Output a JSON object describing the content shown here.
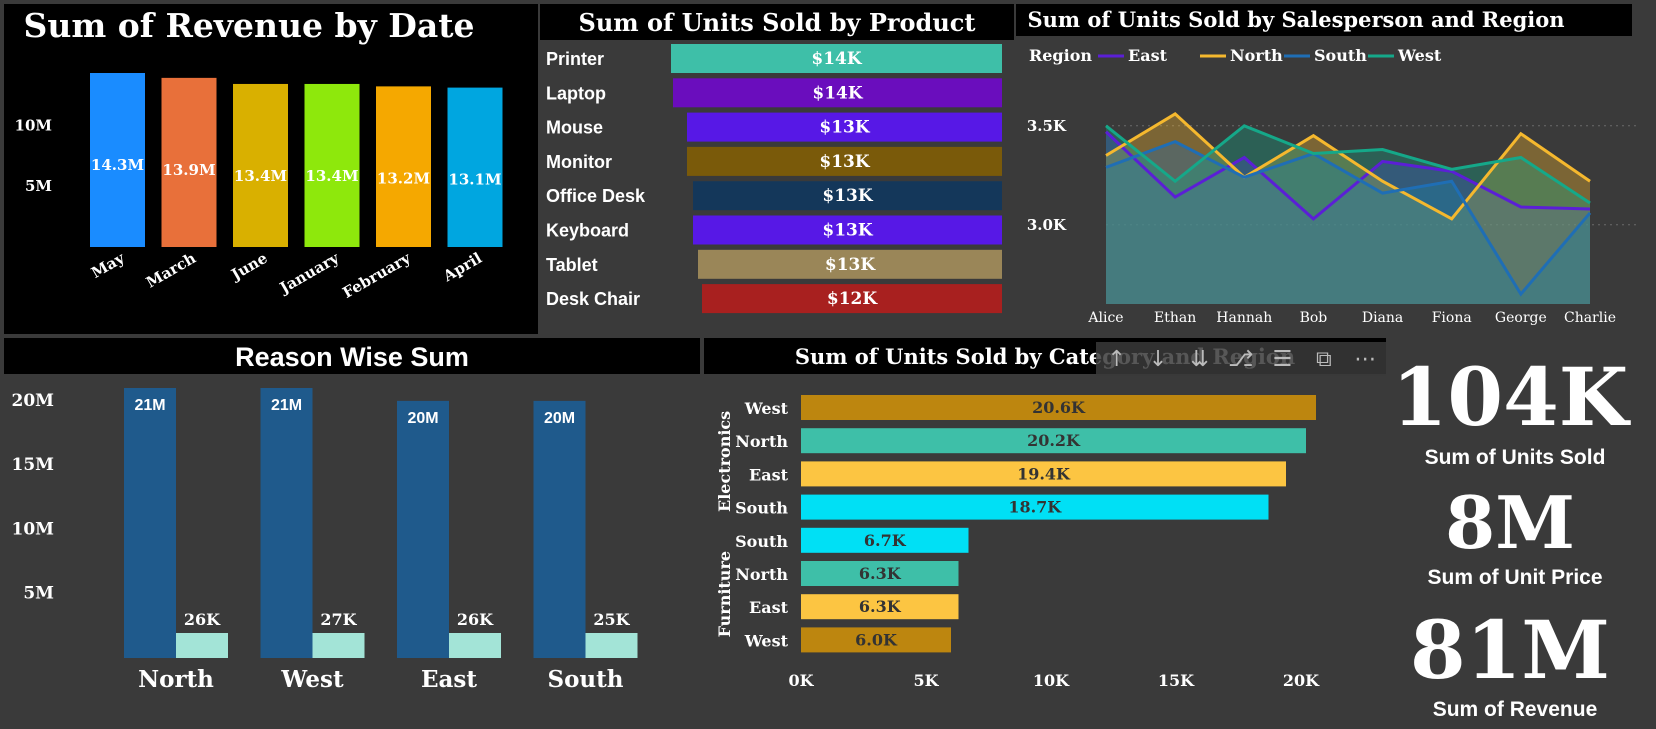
{
  "charts": {
    "revenue_by_date": {
      "title": "Sum of Revenue by Date",
      "y_ticks": [
        "10M",
        "5M"
      ]
    },
    "units_by_product": {
      "title": "Sum of Units Sold by Product"
    },
    "units_by_salesperson_region": {
      "title": "Sum of Units Sold by Salesperson and Region",
      "legend_title": "Region",
      "y_ticks": [
        "3.5K",
        "3.0K"
      ]
    },
    "reason_wise_sum": {
      "title": "Reason Wise Sum",
      "y_ticks": [
        "20M",
        "15M",
        "10M",
        "5M"
      ]
    },
    "units_by_category_region": {
      "title": "Sum of Units Sold by Category and Region",
      "x_ticks": [
        "0K",
        "5K",
        "10K",
        "15K",
        "20K"
      ]
    }
  },
  "kpis": [
    {
      "value": "104K",
      "label": "Sum of Units Sold"
    },
    {
      "value": "8M",
      "label": "Sum of Unit Price"
    },
    {
      "value": "81M",
      "label": "Sum of Revenue"
    }
  ],
  "toolbar_icons": [
    "arrow-up-icon",
    "arrow-down-icon",
    "double-arrow-down-icon",
    "hierarchy-icon",
    "filter-icon",
    "focus-mode-icon",
    "more-options-icon"
  ],
  "colors": {
    "background": "#3a3a3a",
    "panel_black": "#000000",
    "east": "#5b1fd6",
    "north": "#f5b82e",
    "south": "#1f6eb5",
    "west": "#15a889"
  },
  "chart_data": [
    {
      "type": "bar",
      "title": "Sum of Revenue by Date",
      "categories": [
        "May",
        "March",
        "June",
        "January",
        "February",
        "April"
      ],
      "values": [
        14.3,
        13.9,
        13.4,
        13.4,
        13.2,
        13.1
      ],
      "data_labels": [
        "14.3M",
        "13.9M",
        "13.4M",
        "13.4M",
        "13.2M",
        "13.1M"
      ],
      "colors": [
        "#1a8cff",
        "#e8703a",
        "#d9b000",
        "#8ee80c",
        "#f5a800",
        "#00a6e0"
      ],
      "ylim": [
        0,
        15
      ],
      "y_ticks": [
        "10M",
        "5M"
      ]
    },
    {
      "type": "bar",
      "orientation": "horizontal",
      "title": "Sum of Units Sold by Product",
      "categories": [
        "Printer",
        "Laptop",
        "Mouse",
        "Monitor",
        "Office Desk",
        "Keyboard",
        "Tablet",
        "Desk Chair"
      ],
      "values": [
        14,
        14,
        13,
        13,
        13,
        13,
        13,
        12
      ],
      "data_labels": [
        "$14K",
        "$14K",
        "$13K",
        "$13K",
        "$13K",
        "$13K",
        "$13K",
        "$12K"
      ],
      "colors": [
        "#3ebfa8",
        "#6a0dbd",
        "#5718e6",
        "#7a5a0a",
        "#14375a",
        "#5718e6",
        "#9a8658",
        "#a8201f"
      ]
    },
    {
      "type": "area",
      "title": "Sum of Units Sold by Salesperson and Region",
      "x": [
        "Alice",
        "Ethan",
        "Hannah",
        "Bob",
        "Diana",
        "Fiona",
        "George",
        "Charlie"
      ],
      "series": [
        {
          "name": "East",
          "values": [
            3.47,
            3.14,
            3.34,
            3.03,
            3.32,
            3.27,
            3.09,
            3.08
          ]
        },
        {
          "name": "North",
          "values": [
            3.35,
            3.56,
            3.24,
            3.45,
            3.22,
            3.03,
            3.46,
            3.22
          ]
        },
        {
          "name": "South",
          "values": [
            3.29,
            3.42,
            3.24,
            3.36,
            3.16,
            3.22,
            2.65,
            3.06
          ]
        },
        {
          "name": "West",
          "values": [
            3.5,
            3.22,
            3.5,
            3.36,
            3.38,
            3.28,
            3.34,
            3.11
          ]
        }
      ],
      "legend_title": "Region",
      "ylim": [
        2.6,
        3.6
      ],
      "y_ticks": [
        "3.5K",
        "3.0K"
      ]
    },
    {
      "type": "bar",
      "title": "Reason Wise Sum",
      "categories": [
        "North",
        "West",
        "East",
        "South"
      ],
      "series": [
        {
          "values": [
            21,
            21,
            20,
            20
          ],
          "data_labels": [
            "21M",
            "21M",
            "20M",
            "20M"
          ],
          "color": "#1f5a8c"
        },
        {
          "values": [
            0.026,
            0.027,
            0.026,
            0.025
          ],
          "data_labels": [
            "26K",
            "27K",
            "26K",
            "25K"
          ],
          "color": "#a3e4d7"
        }
      ],
      "ylim": [
        0,
        21
      ],
      "y_ticks": [
        "20M",
        "15M",
        "10M",
        "5M"
      ]
    },
    {
      "type": "bar",
      "orientation": "horizontal",
      "title": "Sum of Units Sold by Category and Region",
      "groups": [
        {
          "name": "Electronics",
          "categories": [
            "West",
            "North",
            "East",
            "South"
          ],
          "values": [
            20.6,
            20.2,
            19.4,
            18.7
          ],
          "data_labels": [
            "20.6K",
            "20.2K",
            "19.4K",
            "18.7K"
          ]
        },
        {
          "name": "Furniture",
          "categories": [
            "South",
            "North",
            "East",
            "West"
          ],
          "values": [
            6.7,
            6.3,
            6.3,
            6.0
          ],
          "data_labels": [
            "6.7K",
            "6.3K",
            "6.3K",
            "6.0K"
          ]
        }
      ],
      "region_colors": {
        "West": "#bd860f",
        "North": "#3ebfa8",
        "East": "#fcc542",
        "South": "#00e0f5"
      },
      "xlim": [
        0,
        22
      ],
      "x_ticks": [
        "0K",
        "5K",
        "10K",
        "15K",
        "20K"
      ]
    }
  ]
}
